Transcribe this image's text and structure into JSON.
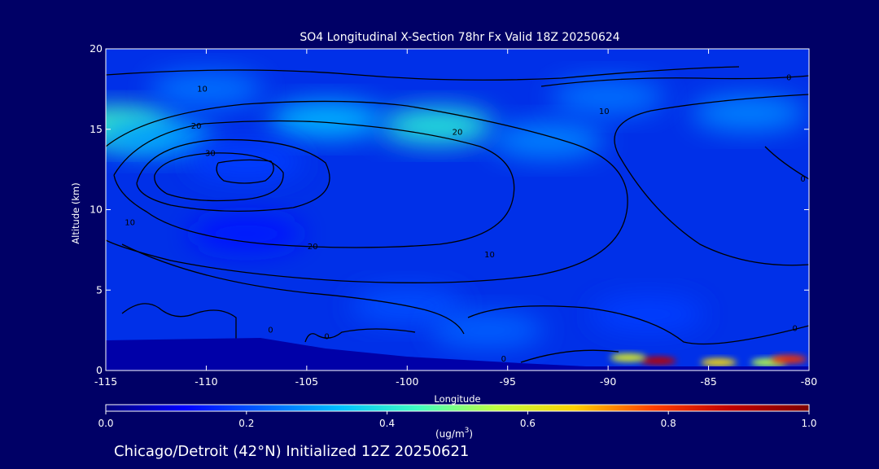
{
  "chart_data": {
    "type": "heatmap",
    "title": "SO4 Longitudinal X-Section 78hr  Fx Valid 18Z 20250624",
    "xlabel": "Longitude",
    "ylabel": "Altitude (km)",
    "xlim": [
      -115,
      -80
    ],
    "ylim": [
      0,
      20
    ],
    "x_ticks": [
      -115,
      -110,
      -105,
      -100,
      -95,
      -90,
      -85,
      -80
    ],
    "x_tick_labels": [
      "-115",
      "-110",
      "-105",
      "-100",
      "-95",
      "-90",
      "-85",
      "-80"
    ],
    "y_ticks": [
      0,
      5,
      10,
      15,
      20
    ],
    "y_tick_labels": [
      "0",
      "5",
      "10",
      "15",
      "20"
    ],
    "colorbar": {
      "ticks": [
        0.0,
        0.2,
        0.4,
        0.6,
        0.8,
        1.0
      ],
      "tick_labels": [
        "0.0",
        "0.2",
        "0.4",
        "0.6",
        "0.8",
        "1.0"
      ],
      "unit_label": "(ug/m",
      "unit_superscript": "3",
      "unit_suffix": ")",
      "colormap": [
        "#000080",
        "#0000ff",
        "#0060ff",
        "#00c0ff",
        "#40ffc0",
        "#c0ff40",
        "#ffd000",
        "#ff4000",
        "#c00000",
        "#800000"
      ]
    },
    "field_features": [
      {
        "lon": -114.5,
        "alt": 15.2,
        "value": 0.45
      },
      {
        "lon": -112.5,
        "alt": 14.5,
        "value": 0.3
      },
      {
        "lon": -98.5,
        "alt": 15.2,
        "value": 0.4
      },
      {
        "lon": -104,
        "alt": 15.6,
        "value": 0.32
      },
      {
        "lon": -93,
        "alt": 14.3,
        "value": 0.26
      },
      {
        "lon": -110,
        "alt": 17.5,
        "value": 0.24
      },
      {
        "lon": -90,
        "alt": 17.0,
        "value": 0.24
      },
      {
        "lon": -83,
        "alt": 16.0,
        "value": 0.26
      },
      {
        "lon": -108,
        "alt": 13.0,
        "value": 0.18
      },
      {
        "lon": -108,
        "alt": 8.5,
        "value": 0.14
      },
      {
        "lon": -100,
        "alt": 4.0,
        "value": 0.2
      },
      {
        "lon": -88,
        "alt": 3.5,
        "value": 0.18
      },
      {
        "lon": -96,
        "alt": 2.5,
        "value": 0.22
      },
      {
        "lon": -87.5,
        "alt": 0.6,
        "value": 0.9
      },
      {
        "lon": -89,
        "alt": 0.8,
        "value": 0.6
      },
      {
        "lon": -84.5,
        "alt": 0.5,
        "value": 0.65
      },
      {
        "lon": -82,
        "alt": 0.5,
        "value": 0.55
      },
      {
        "lon": -81,
        "alt": 0.7,
        "value": 0.8
      }
    ],
    "contour_labels": [
      {
        "text": "10",
        "lon": -110.2,
        "alt": 17.5
      },
      {
        "text": "20",
        "lon": -110.5,
        "alt": 15.2
      },
      {
        "text": "30",
        "lon": -109.8,
        "alt": 13.5
      },
      {
        "text": "10",
        "lon": -113.8,
        "alt": 9.2
      },
      {
        "text": "20",
        "lon": -104.7,
        "alt": 7.7
      },
      {
        "text": "10",
        "lon": -95.9,
        "alt": 7.2
      },
      {
        "text": "20",
        "lon": -97.5,
        "alt": 14.8
      },
      {
        "text": "10",
        "lon": -90.2,
        "alt": 16.1
      },
      {
        "text": "0",
        "lon": -81.0,
        "alt": 18.2
      },
      {
        "text": "0",
        "lon": -80.3,
        "alt": 11.9
      },
      {
        "text": "0",
        "lon": -104.0,
        "alt": 2.1
      },
      {
        "text": "0",
        "lon": -95.2,
        "alt": 0.7
      },
      {
        "text": "0",
        "lon": -80.7,
        "alt": 2.6
      },
      {
        "text": "0",
        "lon": -106.8,
        "alt": 2.5
      }
    ]
  },
  "footer": {
    "text": "Chicago/Detroit (42°N) Initialized 12Z 20250621"
  }
}
